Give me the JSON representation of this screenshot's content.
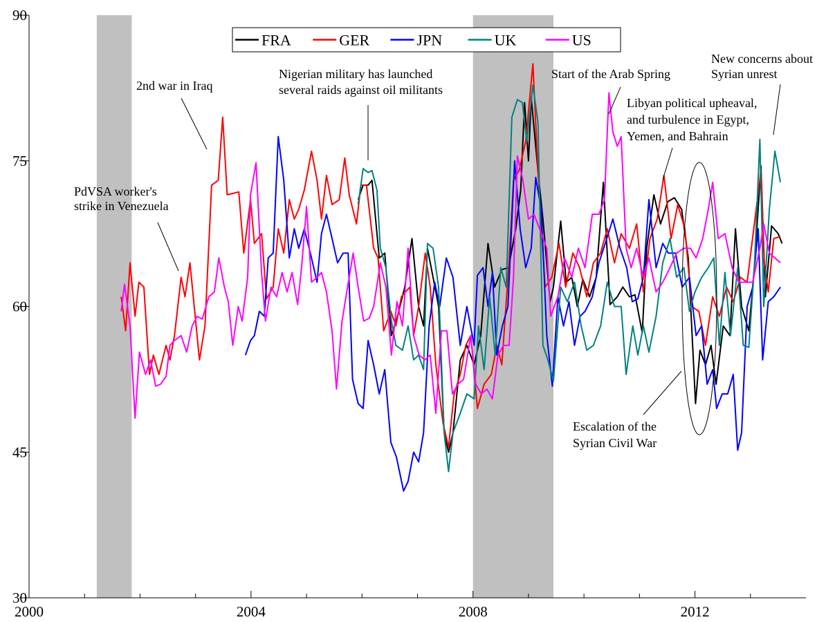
{
  "chart_data": {
    "type": "line",
    "xlim": [
      2000,
      2014
    ],
    "xticks": [
      2000,
      2004,
      2008,
      2012
    ],
    "xminorticks": [
      2001,
      2002,
      2003,
      2005,
      2006,
      2007,
      2009,
      2010,
      2011,
      2013
    ],
    "ylim": [
      30,
      90
    ],
    "yticks": [
      30,
      45,
      60,
      75,
      90
    ],
    "legend": "top",
    "grid": false,
    "shaded_ranges": [
      [
        2001.22,
        2001.85
      ],
      [
        2008.0,
        2009.45
      ]
    ],
    "shade_color": "#c0c0c0",
    "annotations": [
      {
        "lines": [
          "PdVSA worker's",
          "strike in Venezuela"
        ]
      },
      {
        "lines": [
          "2nd war in Iraq"
        ]
      },
      {
        "lines": [
          "Nigerian military has launched",
          "several raids against oil militants"
        ]
      },
      {
        "lines": [
          "Start of the Arab Spring"
        ]
      },
      {
        "lines": [
          "Libyan political upheaval,",
          "and turbulence in Egypt,",
          "Yemen, and Bahrain"
        ]
      },
      {
        "lines": [
          "New concerns about",
          "Syrian unrest"
        ]
      },
      {
        "lines": [
          "Escalation of the",
          "Syrian Civil War"
        ]
      }
    ],
    "series": [
      {
        "name": "FRA",
        "color": "#000000",
        "x": [
          2005.93,
          2006.02,
          2006.11,
          2006.18,
          2006.31,
          2006.41,
          2006.53,
          2006.64,
          2006.77,
          2006.9,
          2007.02,
          2007.11,
          2007.18,
          2007.28,
          2007.38,
          2007.48,
          2007.56,
          2007.64,
          2007.77,
          2007.89,
          2008.02,
          2008.14,
          2008.27,
          2008.39,
          2008.52,
          2008.64,
          2008.77,
          2008.86,
          2008.93,
          2009.0,
          2009.05,
          2009.17,
          2009.26,
          2009.39,
          2009.45,
          2009.58,
          2009.68,
          2009.78,
          2009.88,
          2009.98,
          2010.1,
          2010.22,
          2010.35,
          2010.47,
          2010.6,
          2010.7,
          2010.82,
          2010.92,
          2011.05,
          2011.13,
          2011.26,
          2011.38,
          2011.51,
          2011.63,
          2011.76,
          2011.88,
          2012.01,
          2012.09,
          2012.19,
          2012.29,
          2012.38,
          2012.51,
          2012.63,
          2012.73,
          2012.84,
          2012.97,
          2013.07,
          2013.19,
          2013.27,
          2013.38,
          2013.5,
          2013.57
        ],
        "values": [
          71,
          72.5,
          72.5,
          73,
          65,
          65.5,
          57,
          59,
          62,
          67,
          60,
          58,
          66,
          63,
          60,
          47,
          45,
          47,
          54.5,
          56,
          54,
          57,
          66.5,
          62,
          63.8,
          64,
          68,
          72,
          81,
          75,
          81.5,
          74,
          69,
          60.5,
          62,
          68.8,
          62.5,
          63,
          60,
          62.8,
          61,
          63,
          72.8,
          60.2,
          61,
          62,
          61,
          61.2,
          57.3,
          66,
          71.5,
          68.5,
          70.8,
          71.2,
          70,
          65,
          50,
          55.5,
          54,
          56,
          52,
          58,
          57,
          68,
          60,
          57.5,
          64,
          74.5,
          61,
          68.3,
          67.5,
          66.5
        ]
      },
      {
        "name": "GER",
        "color": "#ff0000",
        "x": [
          2001.66,
          2001.74,
          2001.82,
          2001.91,
          2001.98,
          2002.07,
          2002.17,
          2002.24,
          2002.34,
          2002.47,
          2002.54,
          2002.62,
          2002.74,
          2002.81,
          2002.9,
          2003.07,
          2003.17,
          2003.29,
          2003.41,
          2003.49,
          2003.57,
          2003.78,
          2003.87,
          2003.99,
          2004.06,
          2004.19,
          2004.28,
          2004.4,
          2004.49,
          2004.59,
          2004.69,
          2004.78,
          2004.86,
          2004.96,
          2005.09,
          2005.19,
          2005.27,
          2005.36,
          2005.46,
          2005.59,
          2005.69,
          2005.77,
          2005.9,
          2005.98,
          2006.08,
          2006.21,
          2006.29,
          2006.39,
          2006.52,
          2006.61,
          2006.71,
          2006.86,
          2006.93,
          2007.02,
          2007.14,
          2007.23,
          2007.33,
          2007.46,
          2007.56,
          2007.66,
          2007.77,
          2007.87,
          2007.96,
          2008.08,
          2008.2,
          2008.33,
          2008.43,
          2008.52,
          2008.64,
          2008.73,
          2008.83,
          2008.95,
          2009.08,
          2009.17,
          2009.3,
          2009.42,
          2009.55,
          2009.67,
          2009.8,
          2009.92,
          2010.05,
          2010.17,
          2010.3,
          2010.42,
          2010.55,
          2010.67,
          2010.82,
          2010.95,
          2011.07,
          2011.19,
          2011.32,
          2011.44,
          2011.57,
          2011.69,
          2011.82,
          2011.94,
          2012.07,
          2012.19,
          2012.32,
          2012.44,
          2012.57,
          2012.69,
          2012.82,
          2012.94,
          2013.07,
          2013.19,
          2013.25,
          2013.32,
          2013.42,
          2013.54
        ],
        "values": [
          61,
          57.5,
          64.5,
          59,
          62.5,
          62,
          53,
          55,
          53,
          56,
          54.5,
          57,
          63,
          61,
          64.5,
          54.5,
          58,
          72.5,
          73,
          79.5,
          71.5,
          71.8,
          65.5,
          71,
          66.5,
          67.5,
          60.8,
          62,
          68,
          65.5,
          71,
          69,
          70,
          72,
          76,
          73,
          69,
          73.5,
          70.5,
          71,
          75.3,
          71.5,
          68.5,
          72.5,
          72.5,
          66,
          65,
          57.5,
          59.5,
          58,
          61,
          62,
          57,
          60,
          65.5,
          62,
          54,
          48,
          45.5,
          51,
          53,
          56,
          57,
          49.5,
          52,
          53,
          56,
          54,
          63.8,
          73,
          74,
          77,
          85,
          74,
          62,
          63,
          66.5,
          62,
          65.5,
          64,
          61,
          64.5,
          65.5,
          68,
          64.5,
          67.5,
          66,
          68.5,
          61.5,
          67,
          69,
          73.5,
          67,
          70.5,
          68,
          60,
          59.5,
          56,
          61,
          59,
          62,
          60.5,
          63,
          62.5,
          68.5,
          74,
          64.5,
          61.5,
          67,
          67.2
        ]
      },
      {
        "name": "JPN",
        "color": "#0000ff",
        "x": [
          2003.9,
          2003.99,
          2004.06,
          2004.15,
          2004.24,
          2004.31,
          2004.4,
          2004.49,
          2004.59,
          2004.69,
          2004.78,
          2004.86,
          2004.96,
          2005.09,
          2005.19,
          2005.27,
          2005.36,
          2005.46,
          2005.56,
          2005.66,
          2005.75,
          2005.83,
          2005.93,
          2006.02,
          2006.11,
          2006.21,
          2006.31,
          2006.41,
          2006.52,
          2006.62,
          2006.75,
          2006.83,
          2006.93,
          2007.02,
          2007.11,
          2007.21,
          2007.31,
          2007.4,
          2007.52,
          2007.64,
          2007.77,
          2007.89,
          2008.02,
          2008.08,
          2008.18,
          2008.27,
          2008.35,
          2008.43,
          2008.53,
          2008.63,
          2008.75,
          2008.85,
          2008.95,
          2009.05,
          2009.13,
          2009.23,
          2009.33,
          2009.43,
          2009.53,
          2009.63,
          2009.73,
          2009.83,
          2009.93,
          2010.02,
          2010.15,
          2010.27,
          2010.4,
          2010.52,
          2010.65,
          2010.77,
          2010.87,
          2010.97,
          2011.07,
          2011.17,
          2011.3,
          2011.42,
          2011.52,
          2011.65,
          2011.77,
          2011.9,
          2012.02,
          2012.12,
          2012.22,
          2012.32,
          2012.39,
          2012.49,
          2012.59,
          2012.69,
          2012.77,
          2012.84,
          2012.94,
          2013.04,
          2013.14,
          2013.22,
          2013.32,
          2013.42,
          2013.54
        ],
        "values": [
          55,
          56.5,
          57,
          59.5,
          59,
          65,
          65.5,
          77.5,
          73,
          65,
          68,
          66,
          68,
          65,
          62.5,
          67.5,
          69.5,
          67,
          64.5,
          65.5,
          65.5,
          52.5,
          50,
          49.5,
          56.5,
          54,
          51,
          53.5,
          46,
          44.5,
          41,
          42,
          45,
          44,
          47,
          58,
          62.5,
          60,
          65,
          63,
          56,
          60,
          56,
          63.2,
          64,
          60,
          63.5,
          55,
          58,
          60,
          75,
          68,
          64,
          66,
          73.3,
          70,
          57,
          51.8,
          61,
          58,
          60.5,
          56,
          59,
          59.5,
          61,
          64.5,
          66.8,
          69,
          66,
          64,
          60.5,
          60.8,
          63,
          71,
          64,
          66.5,
          65.5,
          65.5,
          62,
          63,
          57,
          58,
          52,
          53.5,
          49.5,
          51,
          51,
          53,
          45.2,
          47,
          60,
          62,
          68,
          54.5,
          60.5,
          61,
          62
        ]
      },
      {
        "name": "UK",
        "color": "#008080",
        "x": [
          2005.93,
          2006.02,
          2006.11,
          2006.18,
          2006.27,
          2006.33,
          2006.43,
          2006.53,
          2006.61,
          2006.73,
          2006.83,
          2006.93,
          2007.02,
          2007.11,
          2007.18,
          2007.28,
          2007.38,
          2007.48,
          2007.56,
          2007.64,
          2007.77,
          2007.89,
          2008.02,
          2008.1,
          2008.2,
          2008.3,
          2008.4,
          2008.5,
          2008.6,
          2008.7,
          2008.8,
          2008.89,
          2008.97,
          2009.08,
          2009.17,
          2009.26,
          2009.35,
          2009.45,
          2009.58,
          2009.7,
          2009.83,
          2009.95,
          2010.05,
          2010.17,
          2010.3,
          2010.42,
          2010.55,
          2010.67,
          2010.76,
          2010.88,
          2010.97,
          2011.07,
          2011.17,
          2011.3,
          2011.42,
          2011.55,
          2011.67,
          2011.8,
          2011.9,
          2012.0,
          2012.12,
          2012.24,
          2012.34,
          2012.44,
          2012.54,
          2012.64,
          2012.77,
          2012.87,
          2012.97,
          2013.07,
          2013.17,
          2013.24,
          2013.34,
          2013.44,
          2013.54
        ],
        "values": [
          70.5,
          74.2,
          73.8,
          74,
          72,
          66,
          64,
          58.5,
          56,
          55.5,
          58,
          54.5,
          55,
          53.5,
          66.5,
          66,
          62,
          47,
          43,
          47,
          49,
          51,
          50.5,
          58,
          53.5,
          61,
          55,
          64,
          62,
          79.5,
          81.3,
          81,
          77,
          82.8,
          79,
          56,
          54.5,
          52.3,
          62,
          60.5,
          62.5,
          58,
          55.5,
          56,
          58,
          62.5,
          60,
          60,
          53,
          58,
          55,
          58,
          55.3,
          59,
          64.5,
          67,
          63,
          64,
          59.5,
          61.5,
          63,
          64,
          65,
          56,
          63.5,
          57,
          64,
          56,
          55.8,
          64,
          77.2,
          60,
          70,
          76,
          72.8
        ]
      },
      {
        "name": "US",
        "color": "#ff00ff",
        "x": [
          2001.66,
          2001.72,
          2001.82,
          2001.91,
          2001.99,
          2002.1,
          2002.19,
          2002.28,
          2002.37,
          2002.47,
          2002.54,
          2002.62,
          2002.74,
          2002.84,
          2002.94,
          2003.03,
          2003.12,
          2003.24,
          2003.34,
          2003.42,
          2003.52,
          2003.59,
          2003.67,
          2003.77,
          2003.84,
          2003.94,
          2003.99,
          2004.09,
          2004.19,
          2004.26,
          2004.36,
          2004.46,
          2004.56,
          2004.65,
          2004.74,
          2004.84,
          2004.91,
          2005.0,
          2005.09,
          2005.19,
          2005.27,
          2005.36,
          2005.46,
          2005.54,
          2005.64,
          2005.74,
          2005.84,
          2005.93,
          2006.03,
          2006.13,
          2006.21,
          2006.33,
          2006.43,
          2006.53,
          2006.63,
          2006.73,
          2006.83,
          2006.93,
          2007.03,
          2007.13,
          2007.23,
          2007.33,
          2007.43,
          2007.53,
          2007.63,
          2007.73,
          2007.83,
          2007.96,
          2008.05,
          2008.15,
          2008.25,
          2008.35,
          2008.45,
          2008.55,
          2008.65,
          2008.73,
          2008.8,
          2008.9,
          2009.0,
          2009.1,
          2009.2,
          2009.33,
          2009.4,
          2009.53,
          2009.65,
          2009.78,
          2009.9,
          2010.02,
          2010.15,
          2010.27,
          2010.37,
          2010.45,
          2010.52,
          2010.6,
          2010.67,
          2010.76,
          2010.85,
          2010.95,
          2011.07,
          2011.17,
          2011.3,
          2011.42,
          2011.55,
          2011.67,
          2011.8,
          2011.92,
          2012.02,
          2012.14,
          2012.24,
          2012.32,
          2012.42,
          2012.54,
          2012.67,
          2012.79,
          2012.92,
          2013.04,
          2013.17,
          2013.24,
          2013.34,
          2013.44,
          2013.54
        ],
        "values": [
          59.5,
          62.3,
          58,
          48.5,
          55.3,
          53,
          54.5,
          51.8,
          52,
          52.8,
          56,
          56.5,
          57,
          55.3,
          58,
          59,
          58.7,
          61,
          61.5,
          65,
          62,
          60.5,
          56,
          60,
          58.5,
          63,
          71.5,
          74.8,
          63.5,
          58.5,
          62,
          61,
          63.5,
          61.5,
          63.5,
          60.2,
          64,
          70.3,
          62.5,
          63,
          63.5,
          61.5,
          57.5,
          51.5,
          58.5,
          62,
          65.5,
          62,
          58.5,
          58.8,
          60,
          64.5,
          62,
          55,
          60.5,
          58,
          66,
          57,
          55,
          54.5,
          55,
          49,
          57.5,
          57.5,
          51,
          52,
          52.5,
          57,
          52,
          51,
          51.5,
          50.5,
          55,
          56,
          56,
          63,
          75.5,
          73,
          69,
          69.5,
          68,
          66,
          59,
          61,
          65,
          63,
          66,
          64,
          69.5,
          69.5,
          71,
          82,
          78,
          76.5,
          77.5,
          66,
          64,
          66,
          63,
          65,
          61.5,
          62.5,
          64,
          65.5,
          66,
          66,
          65,
          67,
          70,
          72.8,
          67,
          67.5,
          64,
          62.5,
          62.5,
          62.5,
          66,
          68.5,
          65.5,
          65,
          64.5
        ]
      }
    ]
  }
}
